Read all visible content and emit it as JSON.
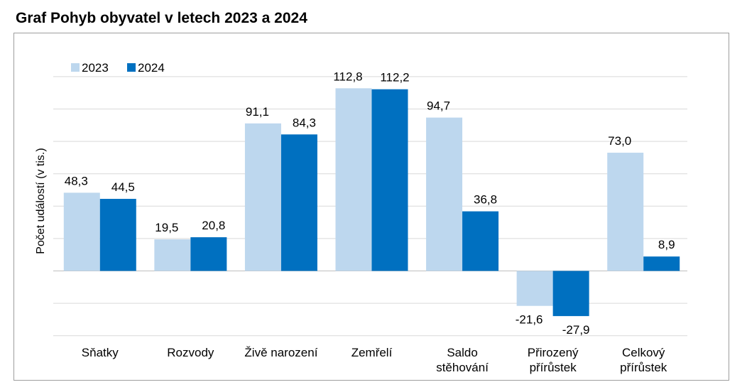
{
  "chart_data": {
    "type": "bar",
    "title": "Graf Pohyb obyvatel v letech 2023 a 2024",
    "ylabel": "Počet událostí  (v tis.)",
    "ylim": [
      -40,
      120
    ],
    "grid": true,
    "legend_position": "top-left",
    "categories": [
      [
        "Sňatky"
      ],
      [
        "Rozvody"
      ],
      [
        "Živě narození"
      ],
      [
        "Zemřelí"
      ],
      [
        "Saldo",
        "stěhování"
      ],
      [
        "Přirozený",
        "přírůstek"
      ],
      [
        "Celkový",
        "přírůstek"
      ]
    ],
    "series": [
      {
        "name": "2023",
        "color": "#bdd7ee",
        "values": [
          48.3,
          19.5,
          91.1,
          112.8,
          94.7,
          -21.6,
          73.0
        ],
        "labels": [
          "48,3",
          "19,5",
          "91,1",
          "112,8",
          "94,7",
          "-21,6",
          "73,0"
        ]
      },
      {
        "name": "2024",
        "color": "#0070c0",
        "values": [
          44.5,
          20.8,
          84.3,
          112.2,
          36.8,
          -27.9,
          8.9
        ],
        "labels": [
          "44,5",
          "20,8",
          "84,3",
          "112,2",
          "36,8",
          "-27,9",
          "8,9"
        ]
      }
    ]
  }
}
